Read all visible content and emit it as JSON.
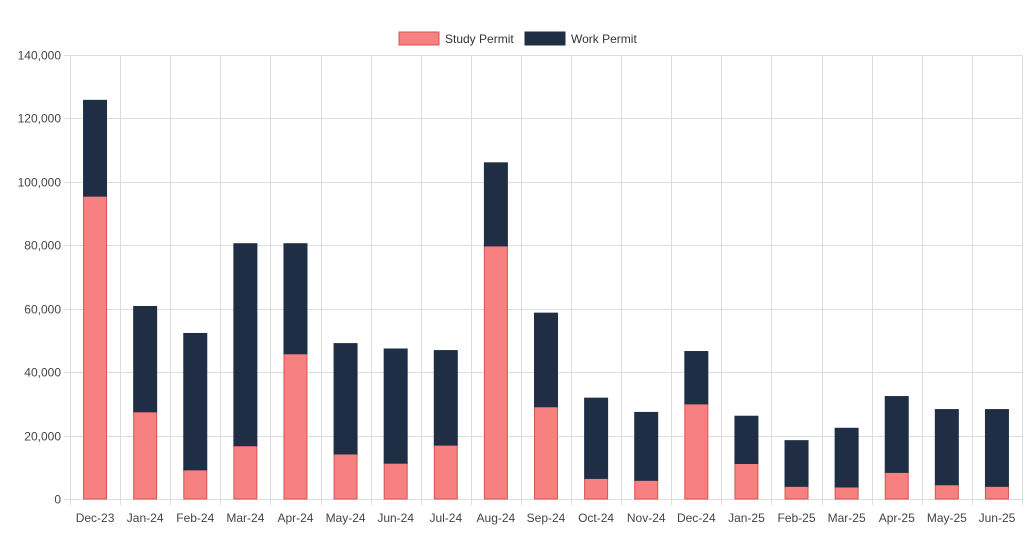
{
  "chart_data": {
    "type": "bar",
    "stacked": true,
    "categories": [
      "Dec-23",
      "Jan-24",
      "Feb-24",
      "Mar-24",
      "Apr-24",
      "May-24",
      "Jun-24",
      "Jul-24",
      "Aug-24",
      "Sep-24",
      "Oct-24",
      "Nov-24",
      "Dec-24",
      "Jan-25",
      "Feb-25",
      "Mar-25",
      "Apr-25",
      "May-25",
      "Jun-25"
    ],
    "series": [
      {
        "name": "Study Permit",
        "color": "#f78080",
        "border_color": "#d9534f",
        "values": [
          95500,
          27500,
          9200,
          16800,
          45800,
          14200,
          11300,
          17000,
          79800,
          29100,
          6500,
          5900,
          30000,
          11200,
          4000,
          3800,
          8400,
          4500,
          4000
        ]
      },
      {
        "name": "Work Permit",
        "color": "#1f2e45",
        "border_color": "#1f2e45",
        "values": [
          30200,
          33200,
          43000,
          63700,
          34700,
          34800,
          36000,
          29800,
          26200,
          29500,
          25300,
          21400,
          16500,
          14900,
          14400,
          18500,
          23900,
          23700,
          24200
        ]
      }
    ],
    "ylim": [
      0,
      140000
    ],
    "y_ticks": [
      0,
      20000,
      40000,
      60000,
      80000,
      100000,
      120000,
      140000
    ],
    "y_tick_labels": [
      "0",
      "20,000",
      "40,000",
      "60,000",
      "80,000",
      "100,000",
      "120,000",
      "140,000"
    ],
    "grid": true,
    "legend_position": "top-center",
    "title": "",
    "xlabel": "",
    "ylabel": ""
  }
}
